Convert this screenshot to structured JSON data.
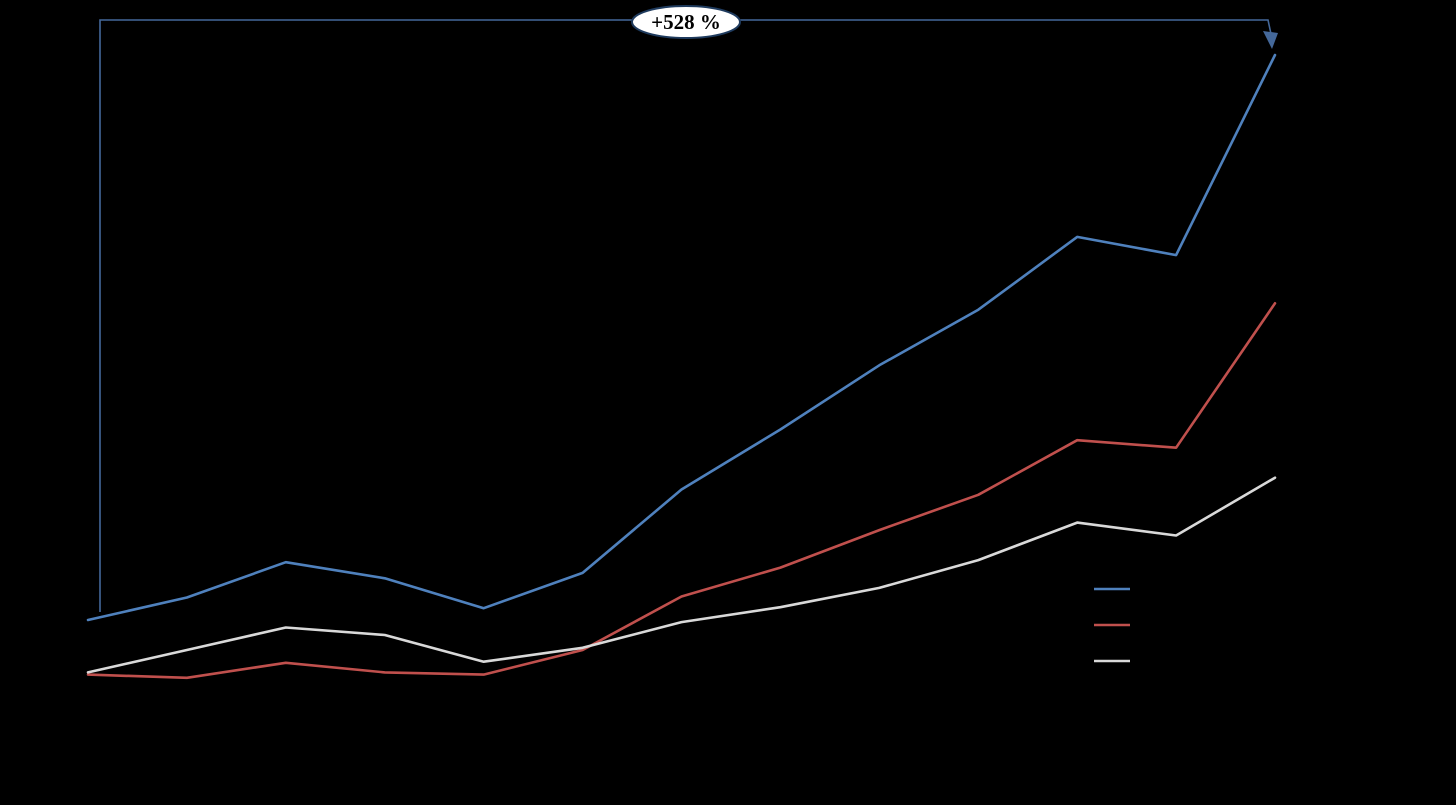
{
  "chart_data": {
    "type": "line",
    "x": [
      1,
      2,
      3,
      4,
      5,
      6,
      7,
      8,
      9,
      10,
      11,
      12,
      13
    ],
    "series": [
      {
        "name": "",
        "color": "#4f81bd",
        "values": [
          100,
          121,
          154,
          139,
          111,
          144,
          222,
          278,
          338,
          390,
          458,
          441,
          628
        ]
      },
      {
        "name": "",
        "color": "#c0504d",
        "values": [
          49,
          46,
          60,
          51,
          49,
          72,
          122,
          149,
          184,
          217,
          268,
          261,
          396
        ]
      },
      {
        "name": "",
        "color": "#d9d9d9",
        "values": [
          51,
          72,
          93,
          86,
          61,
          74,
          98,
          112,
          130,
          156,
          191,
          179,
          233
        ]
      }
    ],
    "title": "",
    "xlabel": "",
    "ylabel": "",
    "grid": false,
    "axes_visible": false,
    "legend_position": "right",
    "background": "#000000",
    "annotation": {
      "text": "+528 %",
      "bubble_fill": "#ffffff",
      "bubble_border": "#1f3b5e",
      "connector_color": "#44689a"
    }
  }
}
